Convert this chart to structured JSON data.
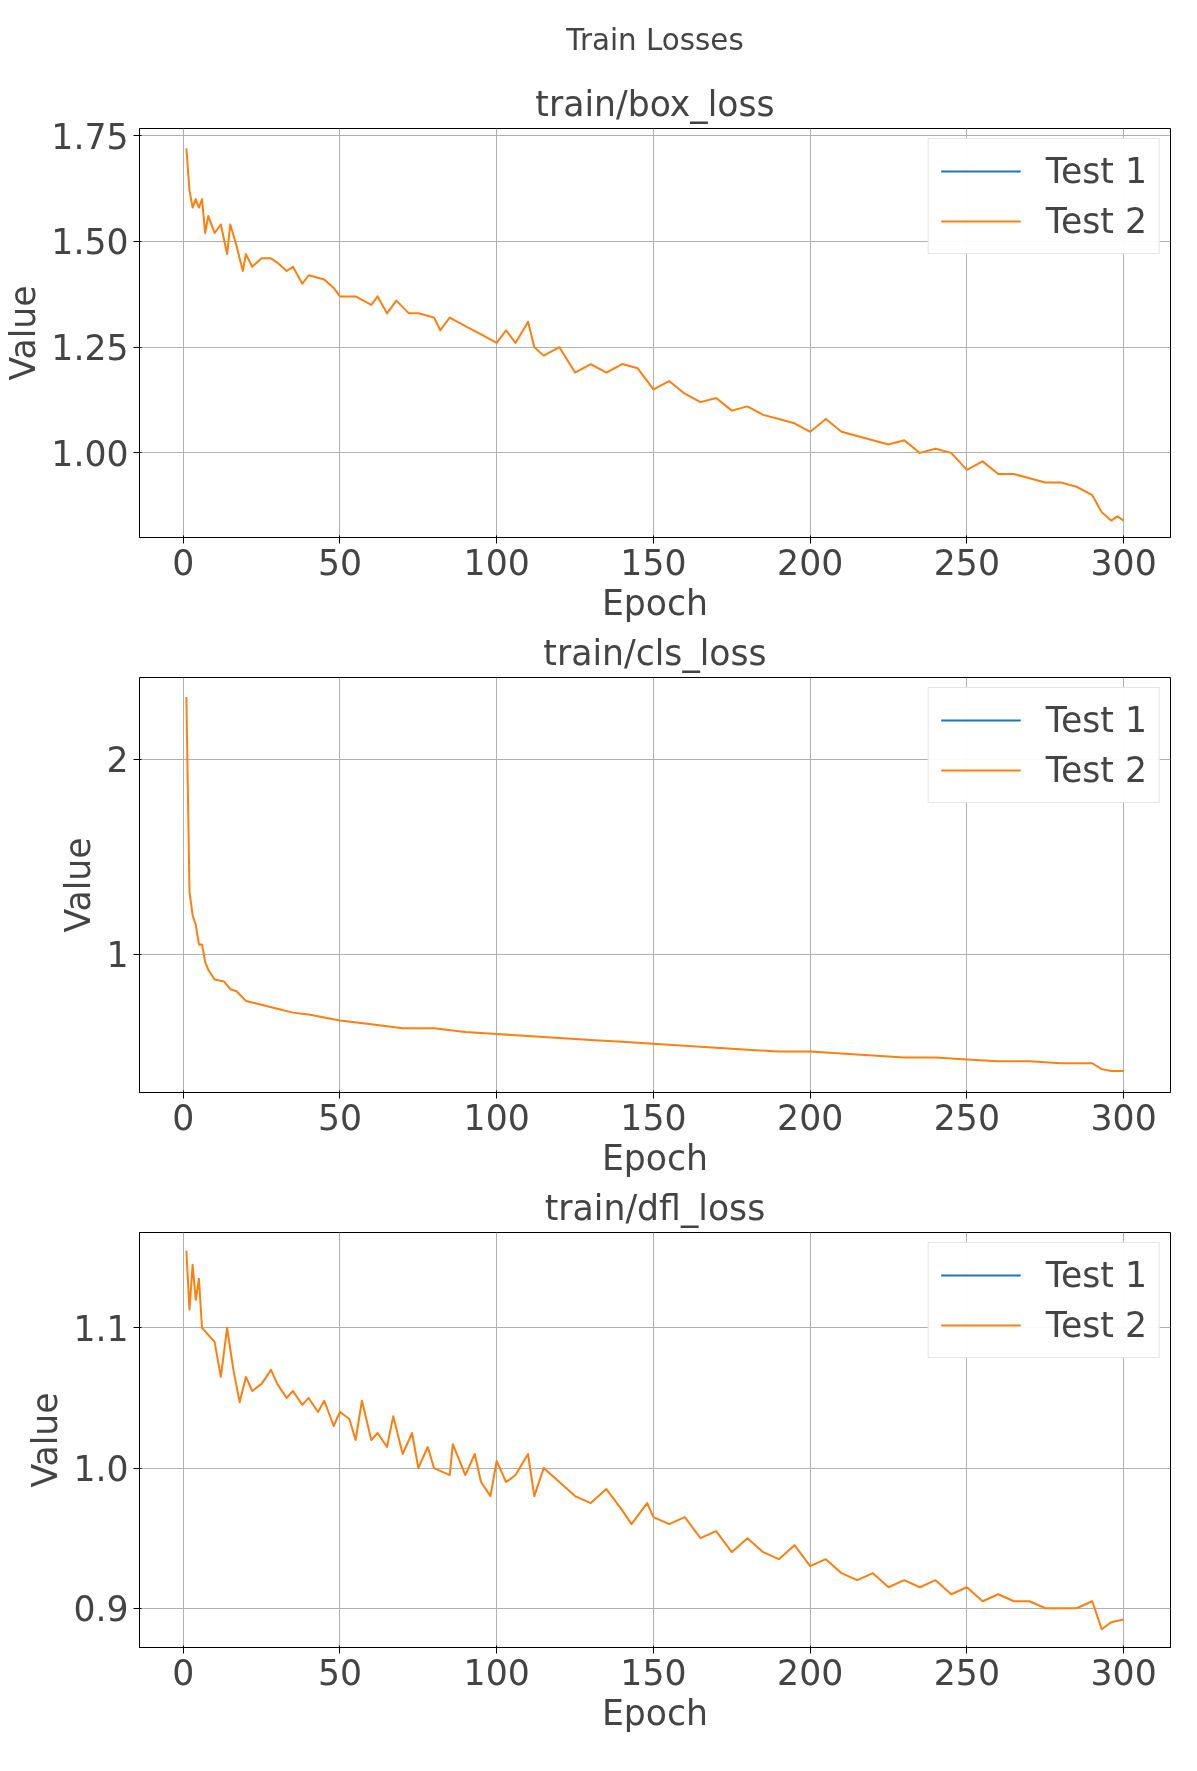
{
  "chart_data": [
    {
      "type": "line",
      "annotations": [
        "Train Losses"
      ],
      "title": "train/box_loss",
      "xlabel": "Epoch",
      "ylabel": "Value",
      "xlim": [
        -13.95,
        314.95
      ],
      "ylim": [
        0.8,
        1.767
      ],
      "xticks": [
        0,
        50,
        100,
        150,
        200,
        250,
        300
      ],
      "yticks": [
        {
          "value": 1.0,
          "label": "1.00"
        },
        {
          "value": 1.25,
          "label": "1.25"
        },
        {
          "value": 1.5,
          "label": "1.50"
        },
        {
          "value": 1.75,
          "label": "1.75"
        }
      ],
      "grid": true,
      "legend": "top right",
      "x": [
        1,
        2,
        3,
        4,
        5,
        6,
        7,
        8,
        10,
        12,
        14,
        15,
        17,
        19,
        20,
        22,
        25,
        28,
        30,
        33,
        35,
        38,
        40,
        45,
        48,
        50,
        55,
        60,
        62,
        65,
        68,
        72,
        75,
        80,
        82,
        85,
        90,
        95,
        100,
        103,
        106,
        110,
        112,
        115,
        120,
        125,
        130,
        135,
        140,
        145,
        150,
        155,
        160,
        165,
        170,
        175,
        180,
        185,
        190,
        195,
        200,
        205,
        210,
        215,
        220,
        225,
        230,
        235,
        240,
        245,
        250,
        255,
        260,
        265,
        270,
        275,
        280,
        285,
        290,
        293,
        296,
        298,
        300
      ],
      "series": [
        {
          "name": "Test 1",
          "color": "#1f77b4",
          "values": [
            null,
            null,
            null,
            null,
            null,
            null,
            null,
            null,
            null,
            null,
            null,
            null,
            null,
            null,
            null,
            null,
            null,
            null,
            null,
            null,
            null,
            null,
            null,
            null,
            null,
            null,
            null,
            null,
            null,
            null,
            null,
            null,
            null,
            null,
            null,
            null,
            null,
            null,
            null,
            null,
            null,
            null,
            null,
            null,
            null,
            null,
            null,
            null,
            null,
            null,
            null,
            null,
            null,
            null,
            null,
            null,
            null,
            null,
            null,
            null,
            null,
            null,
            null,
            null,
            null,
            null,
            null,
            null,
            null,
            null,
            null,
            null,
            null,
            null,
            null,
            null,
            null,
            null,
            null,
            null,
            null,
            null,
            null
          ]
        },
        {
          "name": "Test 2",
          "color": "#ff7f0e",
          "values": [
            1.72,
            1.62,
            1.58,
            1.6,
            1.58,
            1.6,
            1.52,
            1.56,
            1.52,
            1.54,
            1.47,
            1.54,
            1.49,
            1.43,
            1.47,
            1.44,
            1.46,
            1.46,
            1.45,
            1.43,
            1.44,
            1.4,
            1.42,
            1.41,
            1.39,
            1.37,
            1.37,
            1.35,
            1.37,
            1.33,
            1.36,
            1.33,
            1.33,
            1.32,
            1.29,
            1.32,
            1.3,
            1.28,
            1.26,
            1.29,
            1.26,
            1.31,
            1.25,
            1.23,
            1.25,
            1.19,
            1.21,
            1.19,
            1.21,
            1.2,
            1.15,
            1.17,
            1.14,
            1.12,
            1.13,
            1.1,
            1.11,
            1.09,
            1.08,
            1.07,
            1.05,
            1.08,
            1.05,
            1.04,
            1.03,
            1.02,
            1.03,
            1.0,
            1.01,
            1.0,
            0.96,
            0.98,
            0.95,
            0.95,
            0.94,
            0.93,
            0.93,
            0.92,
            0.9,
            0.86,
            0.84,
            0.85,
            0.84
          ]
        }
      ]
    },
    {
      "type": "line",
      "title": "train/cls_loss",
      "xlabel": "Epoch",
      "ylabel": "Value",
      "xlim": [
        -13.95,
        314.95
      ],
      "ylim": [
        0.29,
        2.42
      ],
      "xticks": [
        0,
        50,
        100,
        150,
        200,
        250,
        300
      ],
      "yticks": [
        1,
        2
      ],
      "grid": true,
      "legend": "top right",
      "x": [
        1,
        2,
        3,
        4,
        5,
        6,
        7,
        8,
        10,
        13,
        15,
        17,
        20,
        25,
        30,
        35,
        40,
        50,
        60,
        70,
        80,
        90,
        100,
        110,
        120,
        130,
        140,
        150,
        160,
        170,
        180,
        190,
        200,
        210,
        220,
        230,
        240,
        250,
        260,
        270,
        280,
        290,
        293,
        296,
        300
      ],
      "series": [
        {
          "name": "Test 1",
          "color": "#1f77b4",
          "values": [
            null,
            null,
            null,
            null,
            null,
            null,
            null,
            null,
            null,
            null,
            null,
            null,
            null,
            null,
            null,
            null,
            null,
            null,
            null,
            null,
            null,
            null,
            null,
            null,
            null,
            null,
            null,
            null,
            null,
            null,
            null,
            null,
            null,
            null,
            null,
            null,
            null,
            null,
            null,
            null,
            null,
            null,
            null,
            null,
            null
          ]
        },
        {
          "name": "Test 2",
          "color": "#ff7f0e",
          "values": [
            2.32,
            1.32,
            1.2,
            1.15,
            1.05,
            1.05,
            0.96,
            0.92,
            0.87,
            0.86,
            0.82,
            0.81,
            0.76,
            0.74,
            0.72,
            0.7,
            0.69,
            0.66,
            0.64,
            0.62,
            0.62,
            0.6,
            0.59,
            0.58,
            0.57,
            0.56,
            0.55,
            0.54,
            0.53,
            0.52,
            0.51,
            0.5,
            0.5,
            0.49,
            0.48,
            0.47,
            0.47,
            0.46,
            0.45,
            0.45,
            0.44,
            0.44,
            0.41,
            0.4,
            0.4
          ]
        }
      ]
    },
    {
      "type": "line",
      "title": "train/dfl_loss",
      "xlabel": "Epoch",
      "ylabel": "Value",
      "xlim": [
        -13.95,
        314.95
      ],
      "ylim": [
        0.872,
        1.168
      ],
      "xticks": [
        0,
        50,
        100,
        150,
        200,
        250,
        300
      ],
      "yticks": [
        {
          "value": 0.9,
          "label": "0.9"
        },
        {
          "value": 1.0,
          "label": "1.0"
        },
        {
          "value": 1.1,
          "label": "1.1"
        }
      ],
      "grid": true,
      "legend": "top right",
      "x": [
        1,
        2,
        3,
        4,
        5,
        6,
        8,
        10,
        12,
        14,
        16,
        18,
        20,
        22,
        25,
        28,
        30,
        33,
        35,
        38,
        40,
        43,
        45,
        48,
        50,
        53,
        55,
        57,
        60,
        62,
        65,
        67,
        70,
        73,
        75,
        78,
        80,
        85,
        86,
        90,
        93,
        95,
        98,
        100,
        103,
        106,
        110,
        112,
        115,
        120,
        125,
        130,
        135,
        140,
        143,
        148,
        150,
        155,
        160,
        165,
        170,
        175,
        180,
        185,
        190,
        195,
        200,
        205,
        210,
        215,
        220,
        225,
        230,
        235,
        240,
        245,
        250,
        255,
        260,
        265,
        270,
        275,
        280,
        285,
        290,
        293,
        296,
        300
      ],
      "series": [
        {
          "name": "Test 1",
          "color": "#1f77b4",
          "values": [
            null,
            null,
            null,
            null,
            null,
            null,
            null,
            null,
            null,
            null,
            null,
            null,
            null,
            null,
            null,
            null,
            null,
            null,
            null,
            null,
            null,
            null,
            null,
            null,
            null,
            null,
            null,
            null,
            null,
            null,
            null,
            null,
            null,
            null,
            null,
            null,
            null,
            null,
            null,
            null,
            null,
            null,
            null,
            null,
            null,
            null,
            null,
            null,
            null,
            null,
            null,
            null,
            null,
            null,
            null,
            null,
            null,
            null,
            null,
            null,
            null,
            null,
            null,
            null,
            null,
            null,
            null,
            null,
            null,
            null,
            null,
            null,
            null,
            null,
            null,
            null,
            null,
            null,
            null,
            null,
            null,
            null,
            null,
            null,
            null,
            null,
            null,
            null
          ]
        },
        {
          "name": "Test 2",
          "color": "#ff7f0e",
          "values": [
            1.155,
            1.113,
            1.145,
            1.12,
            1.135,
            1.1,
            1.095,
            1.09,
            1.065,
            1.1,
            1.07,
            1.047,
            1.065,
            1.055,
            1.06,
            1.07,
            1.06,
            1.05,
            1.055,
            1.045,
            1.05,
            1.04,
            1.048,
            1.03,
            1.04,
            1.035,
            1.02,
            1.048,
            1.02,
            1.025,
            1.015,
            1.037,
            1.01,
            1.025,
            1.0,
            1.015,
            1.0,
            0.995,
            1.017,
            0.995,
            1.01,
            0.99,
            0.98,
            1.005,
            0.99,
            0.995,
            1.01,
            0.98,
            1.0,
            0.99,
            0.98,
            0.975,
            0.985,
            0.97,
            0.96,
            0.975,
            0.965,
            0.96,
            0.965,
            0.95,
            0.955,
            0.94,
            0.95,
            0.94,
            0.935,
            0.945,
            0.93,
            0.935,
            0.925,
            0.92,
            0.925,
            0.915,
            0.92,
            0.915,
            0.92,
            0.91,
            0.915,
            0.905,
            0.91,
            0.905,
            0.905,
            0.9,
            0.9,
            0.9,
            0.905,
            0.885,
            0.89,
            0.892
          ]
        }
      ]
    }
  ]
}
